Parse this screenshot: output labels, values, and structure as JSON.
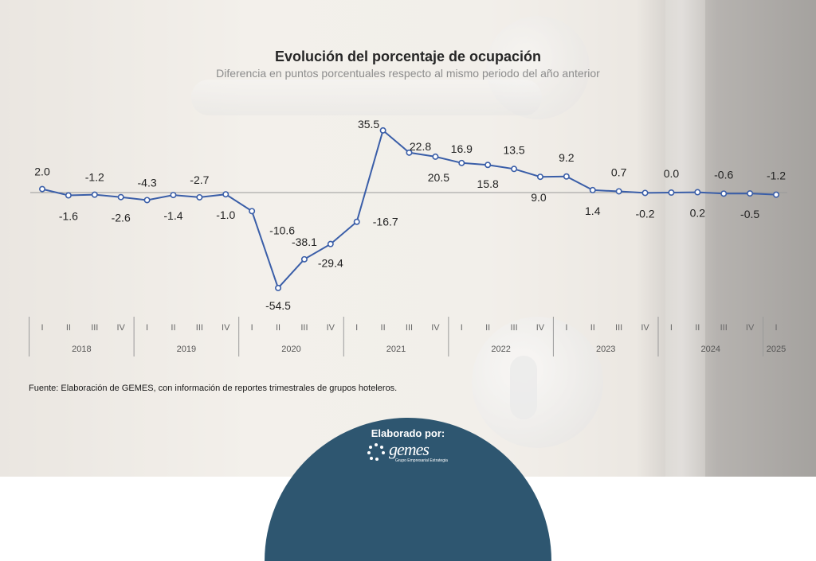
{
  "title": "Evolución del porcentaje de ocupación",
  "subtitle": "Diferencia en puntos porcentuales respecto al mismo periodo del año anterior",
  "source": "Fuente: Elaboración de GEMES, con información de reportes trimestrales de grupos hoteleros.",
  "badge": {
    "label": "Elaborado por:",
    "logo_text": "gemes",
    "logo_tagline": "Grupo Empresarial Estrategia"
  },
  "colors": {
    "line": "#3a5ea8",
    "badge": "#2e5670"
  },
  "chart_data": {
    "type": "line",
    "title": "Evolución del porcentaje de ocupación",
    "subtitle": "Diferencia en puntos porcentuales respecto al mismo periodo del año anterior",
    "x": [
      "2018-I",
      "2018-II",
      "2018-III",
      "2018-IV",
      "2019-I",
      "2019-II",
      "2019-III",
      "2019-IV",
      "2020-I",
      "2020-II",
      "2020-III",
      "2020-IV",
      "2021-I",
      "2021-II",
      "2021-III",
      "2021-IV",
      "2022-I",
      "2022-II",
      "2022-III",
      "2022-IV",
      "2023-I",
      "2023-II",
      "2023-III",
      "2023-IV",
      "2024-I",
      "2024-II",
      "2024-III",
      "2024-IV",
      "2025-I"
    ],
    "quarters": [
      "I",
      "II",
      "III",
      "IV",
      "I",
      "II",
      "III",
      "IV",
      "I",
      "II",
      "III",
      "IV",
      "I",
      "II",
      "III",
      "IV",
      "I",
      "II",
      "III",
      "IV",
      "I",
      "II",
      "III",
      "IV",
      "I",
      "II",
      "III",
      "IV",
      "I"
    ],
    "years": [
      {
        "label": "2018",
        "quarters": 4
      },
      {
        "label": "2019",
        "quarters": 4
      },
      {
        "label": "2020",
        "quarters": 4
      },
      {
        "label": "2021",
        "quarters": 4
      },
      {
        "label": "2022",
        "quarters": 4
      },
      {
        "label": "2023",
        "quarters": 4
      },
      {
        "label": "2024",
        "quarters": 4
      },
      {
        "label": "2025",
        "quarters": 1
      }
    ],
    "series": [
      {
        "values": [
          2.0,
          -1.6,
          -1.2,
          -2.6,
          -4.3,
          -1.4,
          -2.7,
          -1.0,
          -10.6,
          -54.5,
          -38.1,
          -29.4,
          -16.7,
          35.5,
          22.8,
          20.5,
          16.9,
          15.8,
          13.5,
          9.0,
          9.2,
          1.4,
          0.7,
          -0.2,
          0.0,
          0.2,
          -0.6,
          -0.5,
          -1.2
        ]
      }
    ],
    "labels": [
      "2.0",
      "-1.6",
      "-1.2",
      "-2.6",
      "-4.3",
      "-1.4",
      "-2.7",
      "-1.0",
      "-10.6",
      "-54.5",
      "-38.1",
      "-29.4",
      "-16.7",
      "35.5",
      "22.8",
      "20.5",
      "16.9",
      "15.8",
      "13.5",
      "9.0",
      "9.2",
      "1.4",
      "0.7",
      "-0.2",
      "0.0",
      "0.2",
      "-0.6",
      "-0.5",
      "-1.2"
    ],
    "ylim": [
      -60,
      40
    ],
    "grid": false,
    "legend": "none"
  }
}
